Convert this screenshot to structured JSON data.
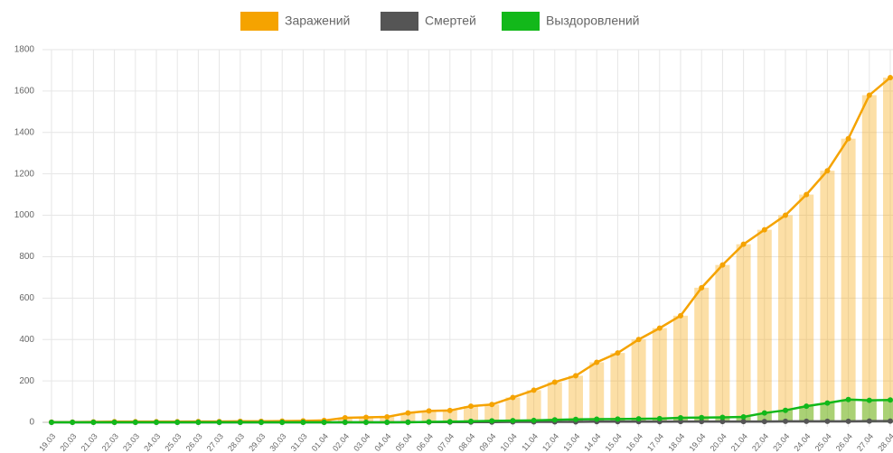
{
  "chart_data": {
    "type": "bar-line",
    "categories": [
      "19.03",
      "20.03",
      "21.03",
      "22.03",
      "23.03",
      "24.03",
      "25.03",
      "26.03",
      "27.03",
      "28.03",
      "29.03",
      "30.03",
      "31.03",
      "01.04",
      "02.04",
      "03.04",
      "04.04",
      "05.04",
      "06.04",
      "07.04",
      "08.04",
      "09.04",
      "10.04",
      "11.04",
      "12.04",
      "13.04",
      "14.04",
      "15.04",
      "16.04",
      "17.04",
      "18.04",
      "19.04",
      "20.04",
      "21.04",
      "22.04",
      "23.04",
      "24.04",
      "25.04",
      "26.04",
      "27.04",
      "28.04"
    ],
    "series": [
      {
        "name": "Заражений",
        "color": "#f5a300",
        "values": [
          1,
          1,
          2,
          3,
          3,
          3,
          3,
          4,
          4,
          5,
          5,
          6,
          7,
          9,
          22,
          24,
          26,
          45,
          55,
          57,
          78,
          86,
          120,
          155,
          194,
          225,
          290,
          335,
          400,
          455,
          515,
          650,
          760,
          860,
          930,
          1000,
          1100,
          1215,
          1370,
          1580,
          1665
        ]
      },
      {
        "name": "Смертей",
        "color": "#555555",
        "values": [
          0,
          0,
          0,
          0,
          0,
          0,
          0,
          0,
          0,
          0,
          0,
          0,
          0,
          0,
          0,
          0,
          0,
          1,
          1,
          1,
          1,
          1,
          2,
          2,
          2,
          2,
          3,
          3,
          3,
          3,
          4,
          4,
          4,
          4,
          4,
          5,
          5,
          5,
          5,
          6,
          6
        ]
      },
      {
        "name": "Выздоровлений",
        "color": "#12b81a",
        "values": [
          0,
          0,
          0,
          0,
          0,
          0,
          0,
          0,
          0,
          0,
          0,
          0,
          0,
          0,
          0,
          0,
          0,
          0,
          2,
          3,
          5,
          7,
          8,
          9,
          12,
          14,
          15,
          16,
          17,
          18,
          22,
          23,
          24,
          26,
          45,
          58,
          78,
          93,
          110,
          106,
          108
        ]
      }
    ],
    "ylim": [
      0,
      1800
    ],
    "yticks": [
      0,
      200,
      400,
      600,
      800,
      1000,
      1200,
      1400,
      1600,
      1800
    ],
    "grid": true,
    "legend": "top"
  }
}
